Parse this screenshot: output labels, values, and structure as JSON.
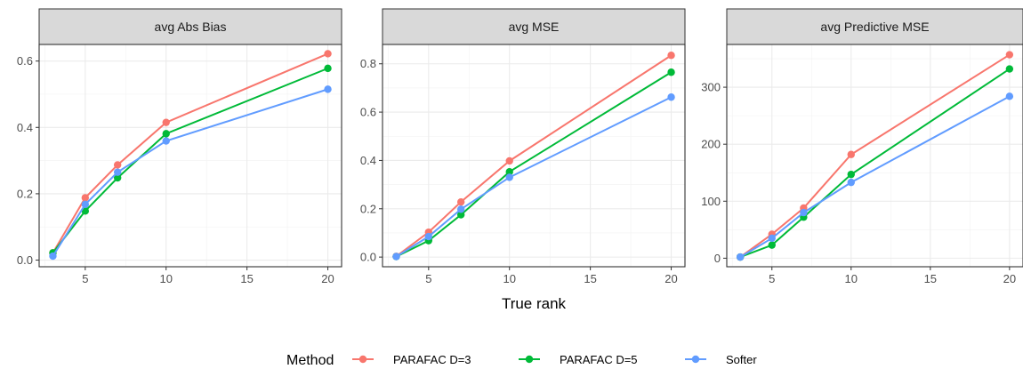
{
  "chart_data": {
    "type": "line",
    "xlabel": "True rank",
    "legend_title": "Method",
    "legend_position": "bottom",
    "grid": true,
    "series_styles": [
      {
        "name": "PARAFAC D=3",
        "color": "#F8766D"
      },
      {
        "name": "PARAFAC D=5",
        "color": "#00BA38"
      },
      {
        "name": "Softer",
        "color": "#619CFF"
      }
    ],
    "panels": [
      {
        "title": "avg Abs Bias",
        "xlim": [
          2.15,
          20.85
        ],
        "ylim": [
          -0.02,
          0.65
        ],
        "xticks": [
          5,
          10,
          15,
          20
        ],
        "yticks": [
          0.0,
          0.2,
          0.4,
          0.6
        ],
        "ytick_labels": [
          "0.0",
          "0.2",
          "0.4",
          "0.6"
        ],
        "series": [
          {
            "name": "PARAFAC D=3",
            "x": [
              3,
              5,
              7,
              10,
              20
            ],
            "y": [
              0.022,
              0.188,
              0.287,
              0.415,
              0.622
            ]
          },
          {
            "name": "PARAFAC D=5",
            "x": [
              3,
              5,
              7,
              10,
              20
            ],
            "y": [
              0.022,
              0.148,
              0.248,
              0.381,
              0.578
            ]
          },
          {
            "name": "Softer",
            "x": [
              3,
              5,
              7,
              10,
              20
            ],
            "y": [
              0.012,
              0.168,
              0.265,
              0.359,
              0.515
            ]
          }
        ]
      },
      {
        "title": "avg MSE",
        "xlim": [
          2.15,
          20.85
        ],
        "ylim": [
          -0.04,
          0.88
        ],
        "xticks": [
          5,
          10,
          15,
          20
        ],
        "yticks": [
          0.0,
          0.2,
          0.4,
          0.6,
          0.8
        ],
        "ytick_labels": [
          "0.0",
          "0.2",
          "0.4",
          "0.6",
          "0.8"
        ],
        "series": [
          {
            "name": "PARAFAC D=3",
            "x": [
              3,
              5,
              7,
              10,
              20
            ],
            "y": [
              0.003,
              0.103,
              0.228,
              0.398,
              0.835
            ]
          },
          {
            "name": "PARAFAC D=5",
            "x": [
              3,
              5,
              7,
              10,
              20
            ],
            "y": [
              0.002,
              0.068,
              0.175,
              0.353,
              0.765
            ]
          },
          {
            "name": "Softer",
            "x": [
              3,
              5,
              7,
              10,
              20
            ],
            "y": [
              0.002,
              0.085,
              0.198,
              0.33,
              0.662
            ]
          }
        ]
      },
      {
        "title": "avg Predictive MSE",
        "xlim": [
          2.15,
          20.85
        ],
        "ylim": [
          -15,
          375
        ],
        "xticks": [
          5,
          10,
          15,
          20
        ],
        "yticks": [
          0,
          100,
          200,
          300
        ],
        "ytick_labels": [
          "0",
          "100",
          "200",
          "300"
        ],
        "series": [
          {
            "name": "PARAFAC D=3",
            "x": [
              3,
              5,
              7,
              10,
              20
            ],
            "y": [
              2,
              42,
              88,
              182,
              357
            ]
          },
          {
            "name": "PARAFAC D=5",
            "x": [
              3,
              5,
              7,
              10,
              20
            ],
            "y": [
              2,
              23,
              72,
              147,
              332
            ]
          },
          {
            "name": "Softer",
            "x": [
              3,
              5,
              7,
              10,
              20
            ],
            "y": [
              2,
              35,
              80,
              133,
              284
            ]
          }
        ]
      }
    ]
  }
}
